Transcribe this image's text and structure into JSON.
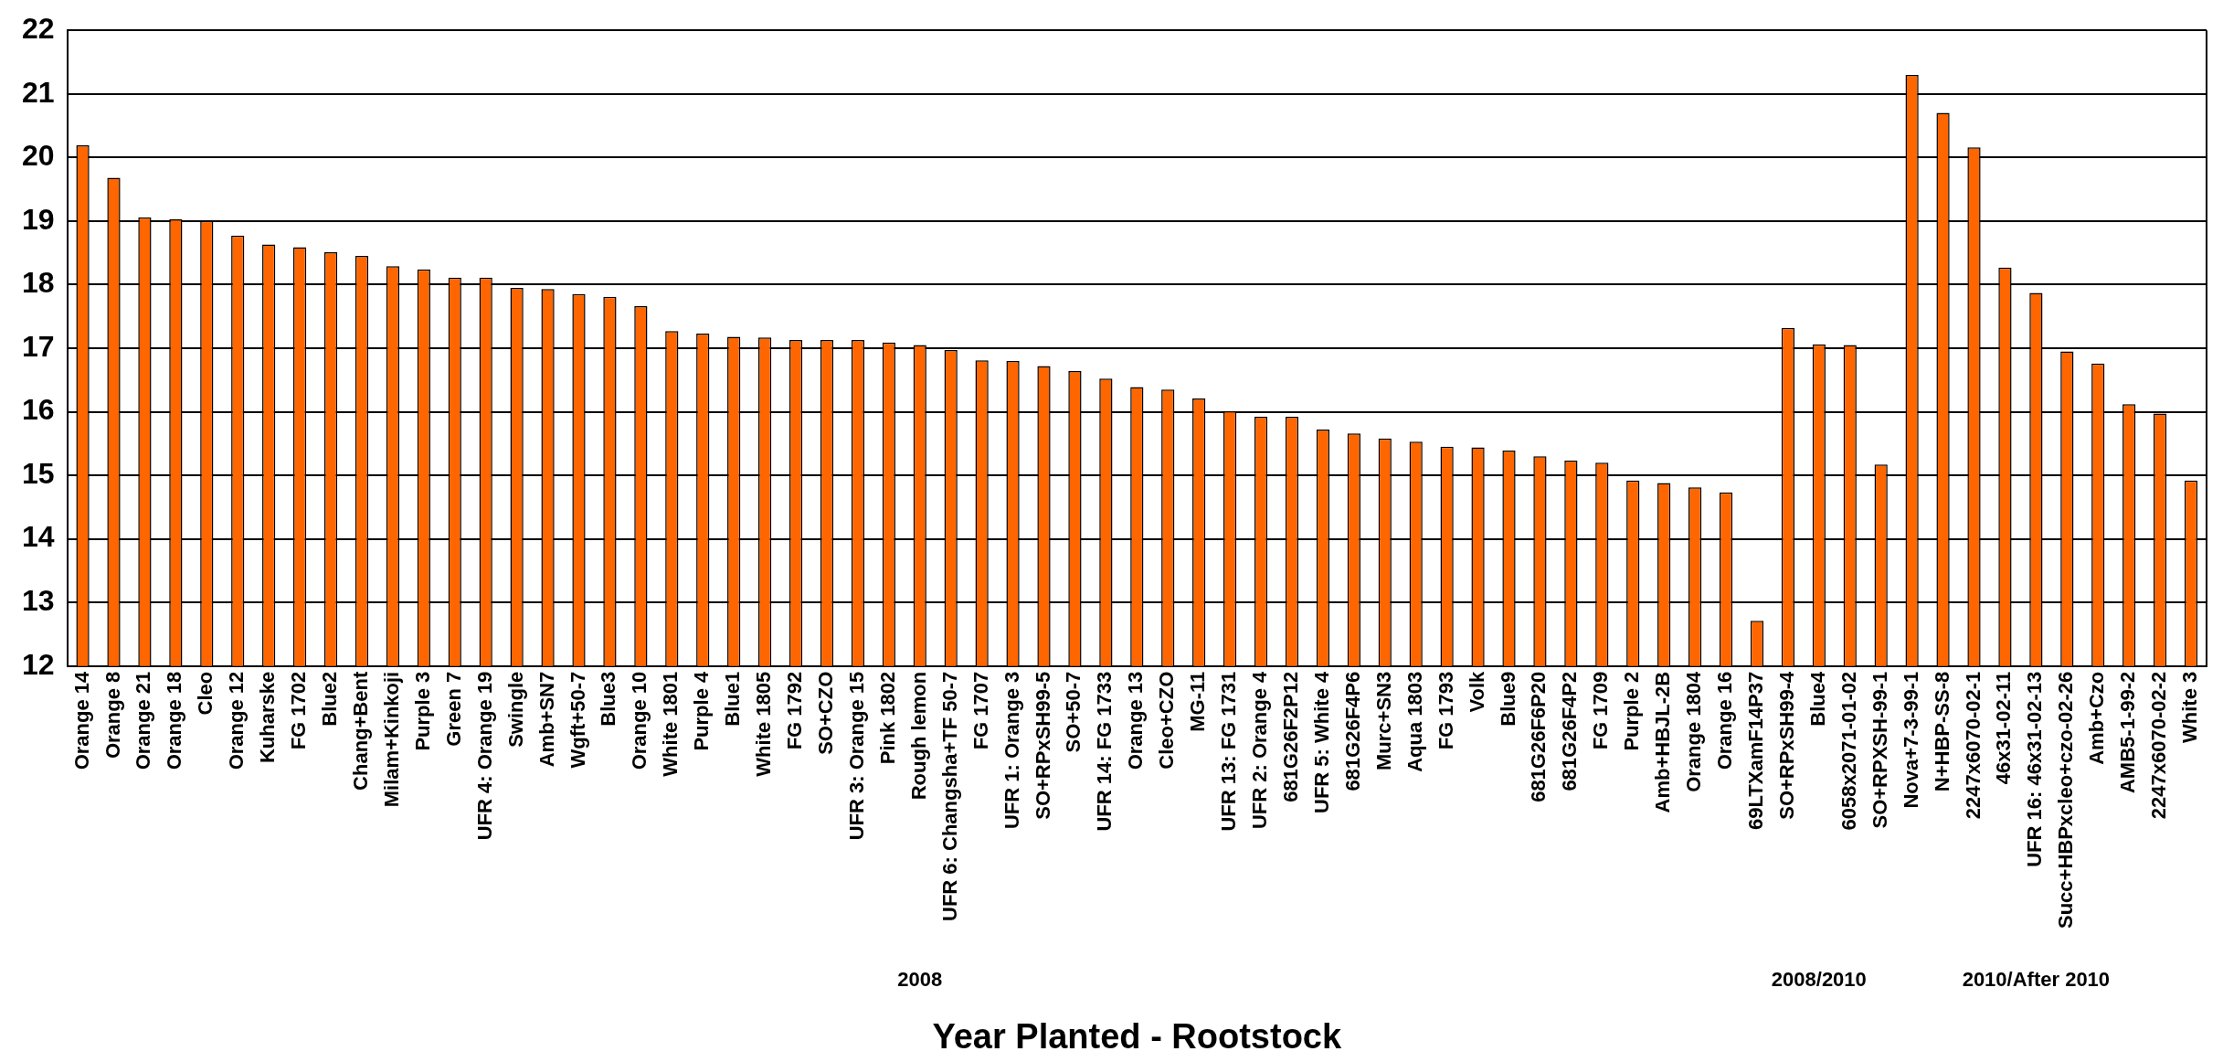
{
  "chart_data": {
    "type": "bar",
    "xlabel": "Year Planted - Rootstock",
    "categories": [
      "Orange 14",
      "Orange 8",
      "Orange 21",
      "Orange 18",
      "Cleo",
      "Orange 12",
      "Kuharske",
      "FG 1702",
      "Blue2",
      "Chang+Bent",
      "Milam+Kinkoji",
      "Purple 3",
      "Green 7",
      "UFR 4: Orange 19",
      "Swingle",
      "Amb+SN7",
      "Wgft+50-7",
      "Blue3",
      "Orange 10",
      "White 1801",
      "Purple 4",
      "Blue1",
      "White 1805",
      "FG 1792",
      "SO+CZO",
      "UFR 3: Orange 15",
      "Pink 1802",
      "Rough lemon",
      "UFR 6: Changsha+TF 50-7",
      "FG 1707",
      "UFR 1: Orange 3",
      "SO+RPxSH99-5",
      "SO+50-7",
      "UFR 14: FG 1733",
      "Orange 13",
      "Cleo+CZO",
      "MG-11",
      "UFR 13: FG 1731",
      "UFR 2: Orange 4",
      "681G26F2P12",
      "UFR 5: White 4",
      "681G26F4P6",
      "Murc+SN3",
      "Aqua 1803",
      "FG 1793",
      "Volk",
      "Blue9",
      "681G26F6P20",
      "681G26F4P2",
      "FG 1709",
      "Purple 2",
      "Amb+HBJL-2B",
      "Orange 1804",
      "Orange 16",
      "69LTXamF14P37",
      "SO+RPxSH99-4",
      "Blue4",
      "6058x2071-01-02",
      "SO+RPXSH-99-1",
      "Nova+7-3-99-1",
      "N+HBP-SS-8",
      "2247x6070-02-1",
      "46x31-02-11",
      "UFR 16: 46x31-02-13",
      "Succ+HBPxcleo+czo-02-26",
      "Amb+Czo",
      "AMB5-1-99-2",
      "2247x6070-02-2",
      "White 3"
    ],
    "values": [
      20.19,
      19.68,
      19.06,
      19.03,
      19.0,
      18.77,
      18.63,
      18.59,
      18.51,
      18.45,
      18.29,
      18.24,
      18.11,
      18.11,
      17.95,
      17.93,
      17.85,
      17.81,
      17.66,
      17.27,
      17.23,
      17.18,
      17.17,
      17.13,
      17.13,
      17.13,
      17.09,
      17.05,
      16.97,
      16.81,
      16.8,
      16.72,
      16.64,
      16.52,
      16.39,
      16.35,
      16.21,
      16.01,
      15.92,
      15.92,
      15.72,
      15.66,
      15.58,
      15.53,
      15.45,
      15.44,
      15.39,
      15.3,
      15.23,
      15.2,
      14.92,
      14.88,
      14.81,
      14.73,
      12.71,
      17.32,
      17.06,
      17.05,
      15.17,
      21.3,
      20.7,
      20.16,
      18.27,
      17.87,
      16.95,
      16.76,
      16.12,
      15.97,
      14.92
    ],
    "color": "#ff6600",
    "ylim": [
      12,
      22
    ],
    "yticks": [
      12,
      13,
      14,
      15,
      16,
      17,
      18,
      19,
      20,
      21,
      22
    ],
    "grid": "y",
    "annotations": [
      {
        "text": "2008",
        "x": "Rough lemon"
      },
      {
        "text": "2008/2010",
        "x": "Blue4"
      },
      {
        "text": "2010/After 2010",
        "x": "UFR 16: 46x31-02-13"
      }
    ]
  }
}
